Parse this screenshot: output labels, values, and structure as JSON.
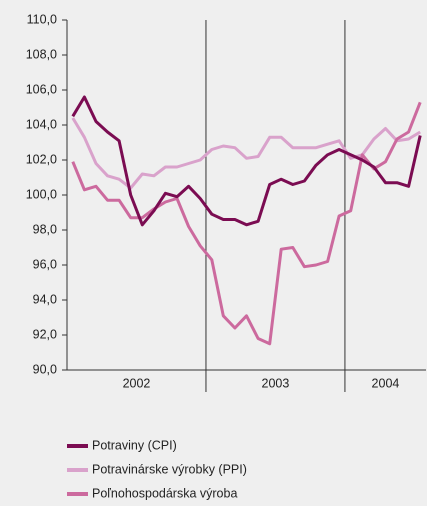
{
  "chart_data": {
    "type": "line",
    "categories": [
      "2002",
      null,
      null,
      null,
      null,
      null,
      null,
      null,
      null,
      null,
      null,
      null,
      "2003",
      null,
      null,
      null,
      null,
      null,
      null,
      null,
      null,
      null,
      null,
      null,
      "2004",
      null,
      null,
      null,
      null,
      null,
      null
    ],
    "series": [
      {
        "name": "Potraviny (CPI)",
        "color": "#7b0c52",
        "values": [
          104.5,
          105.6,
          104.2,
          103.6,
          103.1,
          100.0,
          98.3,
          99.1,
          100.1,
          99.9,
          100.5,
          99.8,
          98.9,
          98.6,
          98.6,
          98.3,
          98.5,
          100.6,
          100.9,
          100.6,
          100.8,
          101.7,
          102.3,
          102.6,
          102.3,
          102.0,
          101.6,
          100.7,
          100.7,
          100.5,
          103.4
        ]
      },
      {
        "name": "Potravinárske výrobky (PPI)",
        "color": "#d9a2cb",
        "values": [
          104.4,
          103.3,
          101.8,
          101.1,
          100.9,
          100.4,
          101.2,
          101.1,
          101.6,
          101.6,
          101.8,
          102.0,
          102.6,
          102.8,
          102.7,
          102.1,
          102.2,
          103.3,
          103.3,
          102.7,
          102.7,
          102.7,
          102.9,
          103.1,
          102.1,
          102.3,
          103.2,
          103.8,
          103.1,
          103.2,
          103.6
        ]
      },
      {
        "name": "Poľnohospodárska výroba",
        "color": "#cc6a9e",
        "values": [
          101.9,
          100.3,
          100.5,
          99.7,
          99.7,
          98.7,
          98.7,
          99.2,
          99.6,
          99.8,
          98.2,
          97.1,
          96.3,
          93.1,
          92.4,
          93.1,
          91.8,
          91.5,
          96.9,
          97.0,
          95.9,
          96.0,
          96.2,
          98.8,
          99.1,
          102.3,
          101.5,
          101.9,
          103.2,
          103.6,
          105.3
        ]
      }
    ],
    "ylim": [
      90,
      110
    ],
    "yticks": [
      {
        "value": 90,
        "label": "90,0"
      },
      {
        "value": 92,
        "label": "92,0"
      },
      {
        "value": 94,
        "label": "94,0"
      },
      {
        "value": 96,
        "label": "96,0"
      },
      {
        "value": 98,
        "label": "98,0"
      },
      {
        "value": 100,
        "label": "100,0"
      },
      {
        "value": 102,
        "label": "102,0"
      },
      {
        "value": 104,
        "label": "104,0"
      },
      {
        "value": 106,
        "label": "106,0"
      },
      {
        "value": 108,
        "label": "108,0"
      },
      {
        "value": 110,
        "label": "110,0"
      }
    ]
  }
}
